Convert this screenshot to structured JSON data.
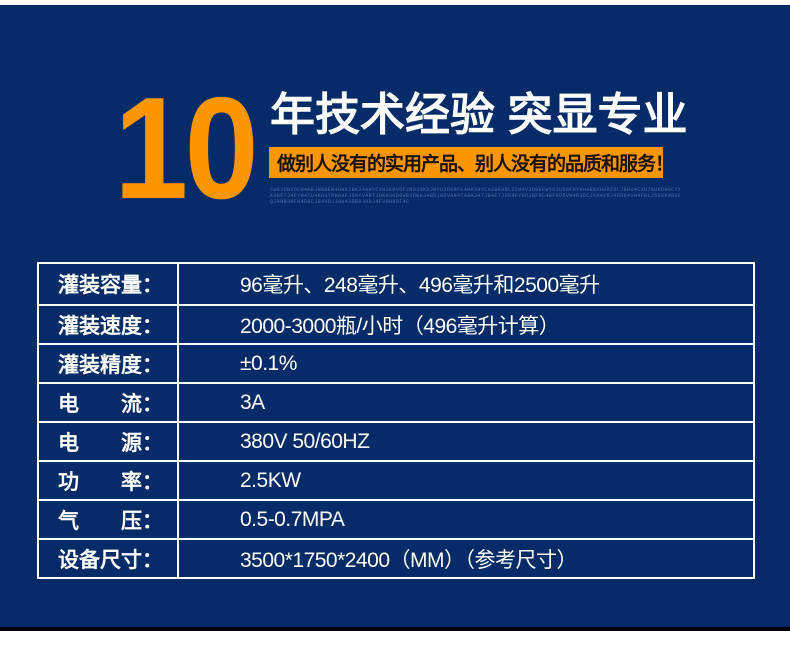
{
  "page": {
    "background_color": "#ffffff",
    "panel_color": "#052c68",
    "accent_orange": "#fb9600",
    "table_border_color": "#ffffff",
    "text_color": "#ffffff"
  },
  "hero": {
    "big_number": "10",
    "headline": "年技术经验 突显专业",
    "banner": "做别人没有的实用产品、别人没有的品质和服务！",
    "micro_text_lines": [
      "CW83DBXOCH4KBJHB8ER4DHK2BK34AHYCXH3EHVOF2N033KDJHYU3D0RFE4HKXHVCA2BKHRLZCH4VJD0EFWY63UD8FHYHHAEBXH0RZDLJ8HU4CXU7GUKDH6CYXHD0BHAGEBK0BYG",
      "K0NFTJ4FYH4TU4KD3YPHA4FJ50YV4RTJDKH3KD6WB3DKHJ4BDJ8DVAH4TA8AJ4TJ84FTJD84FYHDJ8FNC4BFKD5VH4R3DCJKH4YRJ4DD64VH4FBLJ50XK4DV8",
      "QJ4HR3RFH4D8CJ84VDJJ0U43DB83HDJ4FV0H8DT4C"
    ]
  },
  "spec_table": {
    "rows": [
      {
        "label": "灌装容量：",
        "value": "96毫升、248毫升、496毫升和2500毫升"
      },
      {
        "label": "灌装速度：",
        "value": "2000-3000瓶/小时（496毫升计算）"
      },
      {
        "label": "灌装精度：",
        "value": "±0.1%"
      },
      {
        "label": "电　　流：",
        "value": "3A"
      },
      {
        "label": "电　　源：",
        "value": "380V 50/60HZ"
      },
      {
        "label": "功　　率：",
        "value": "2.5KW"
      },
      {
        "label": "气　　压：",
        "value": "0.5-0.7MPA"
      },
      {
        "label": "设备尺寸：",
        "value": "3500*1750*2400（MM）（参考尺寸）"
      }
    ]
  }
}
